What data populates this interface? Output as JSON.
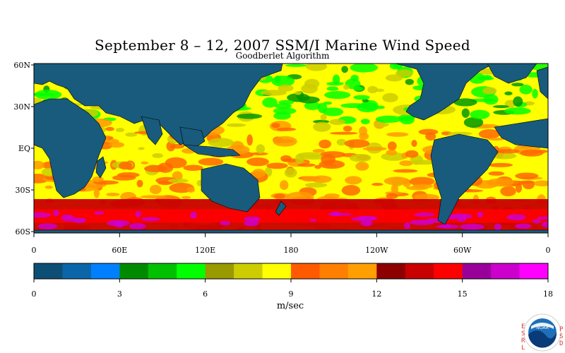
{
  "title": "September 8 – 12, 2007 SSM/I Marine Wind Speed",
  "subtitle": "Goodberlet Algorithm",
  "map": {
    "lat_labels": [
      "60N",
      "30N",
      "EQ",
      "30S",
      "60S"
    ],
    "lon_labels": [
      "0",
      "60E",
      "120E",
      "180",
      "120W",
      "60W",
      "0"
    ],
    "ocean_colors": [
      "#ffff00",
      "#cccc00",
      "#ff6600",
      "#ff9900",
      "#00ff00",
      "#009900"
    ],
    "land_color": "#185b7c"
  },
  "colorbar": {
    "unit_label": "m/sec",
    "ticks": [
      "0",
      "3",
      "6",
      "9",
      "12",
      "15",
      "18"
    ],
    "min": 0,
    "max": 18,
    "colors": [
      "#0d4f74",
      "#0a66a8",
      "#0080ff",
      "#008a00",
      "#00c000",
      "#00ff00",
      "#999900",
      "#cccc00",
      "#ffff00",
      "#ff5a00",
      "#ff7f00",
      "#ff9f00",
      "#8c0000",
      "#c80000",
      "#ff0000",
      "#990099",
      "#cc00cc",
      "#ff00ff"
    ]
  },
  "logo": {
    "left_letters": [
      "E",
      "S",
      "R",
      "L"
    ],
    "right_letters": [
      "P",
      "S",
      "D"
    ],
    "badge_text": "NOAA"
  }
}
